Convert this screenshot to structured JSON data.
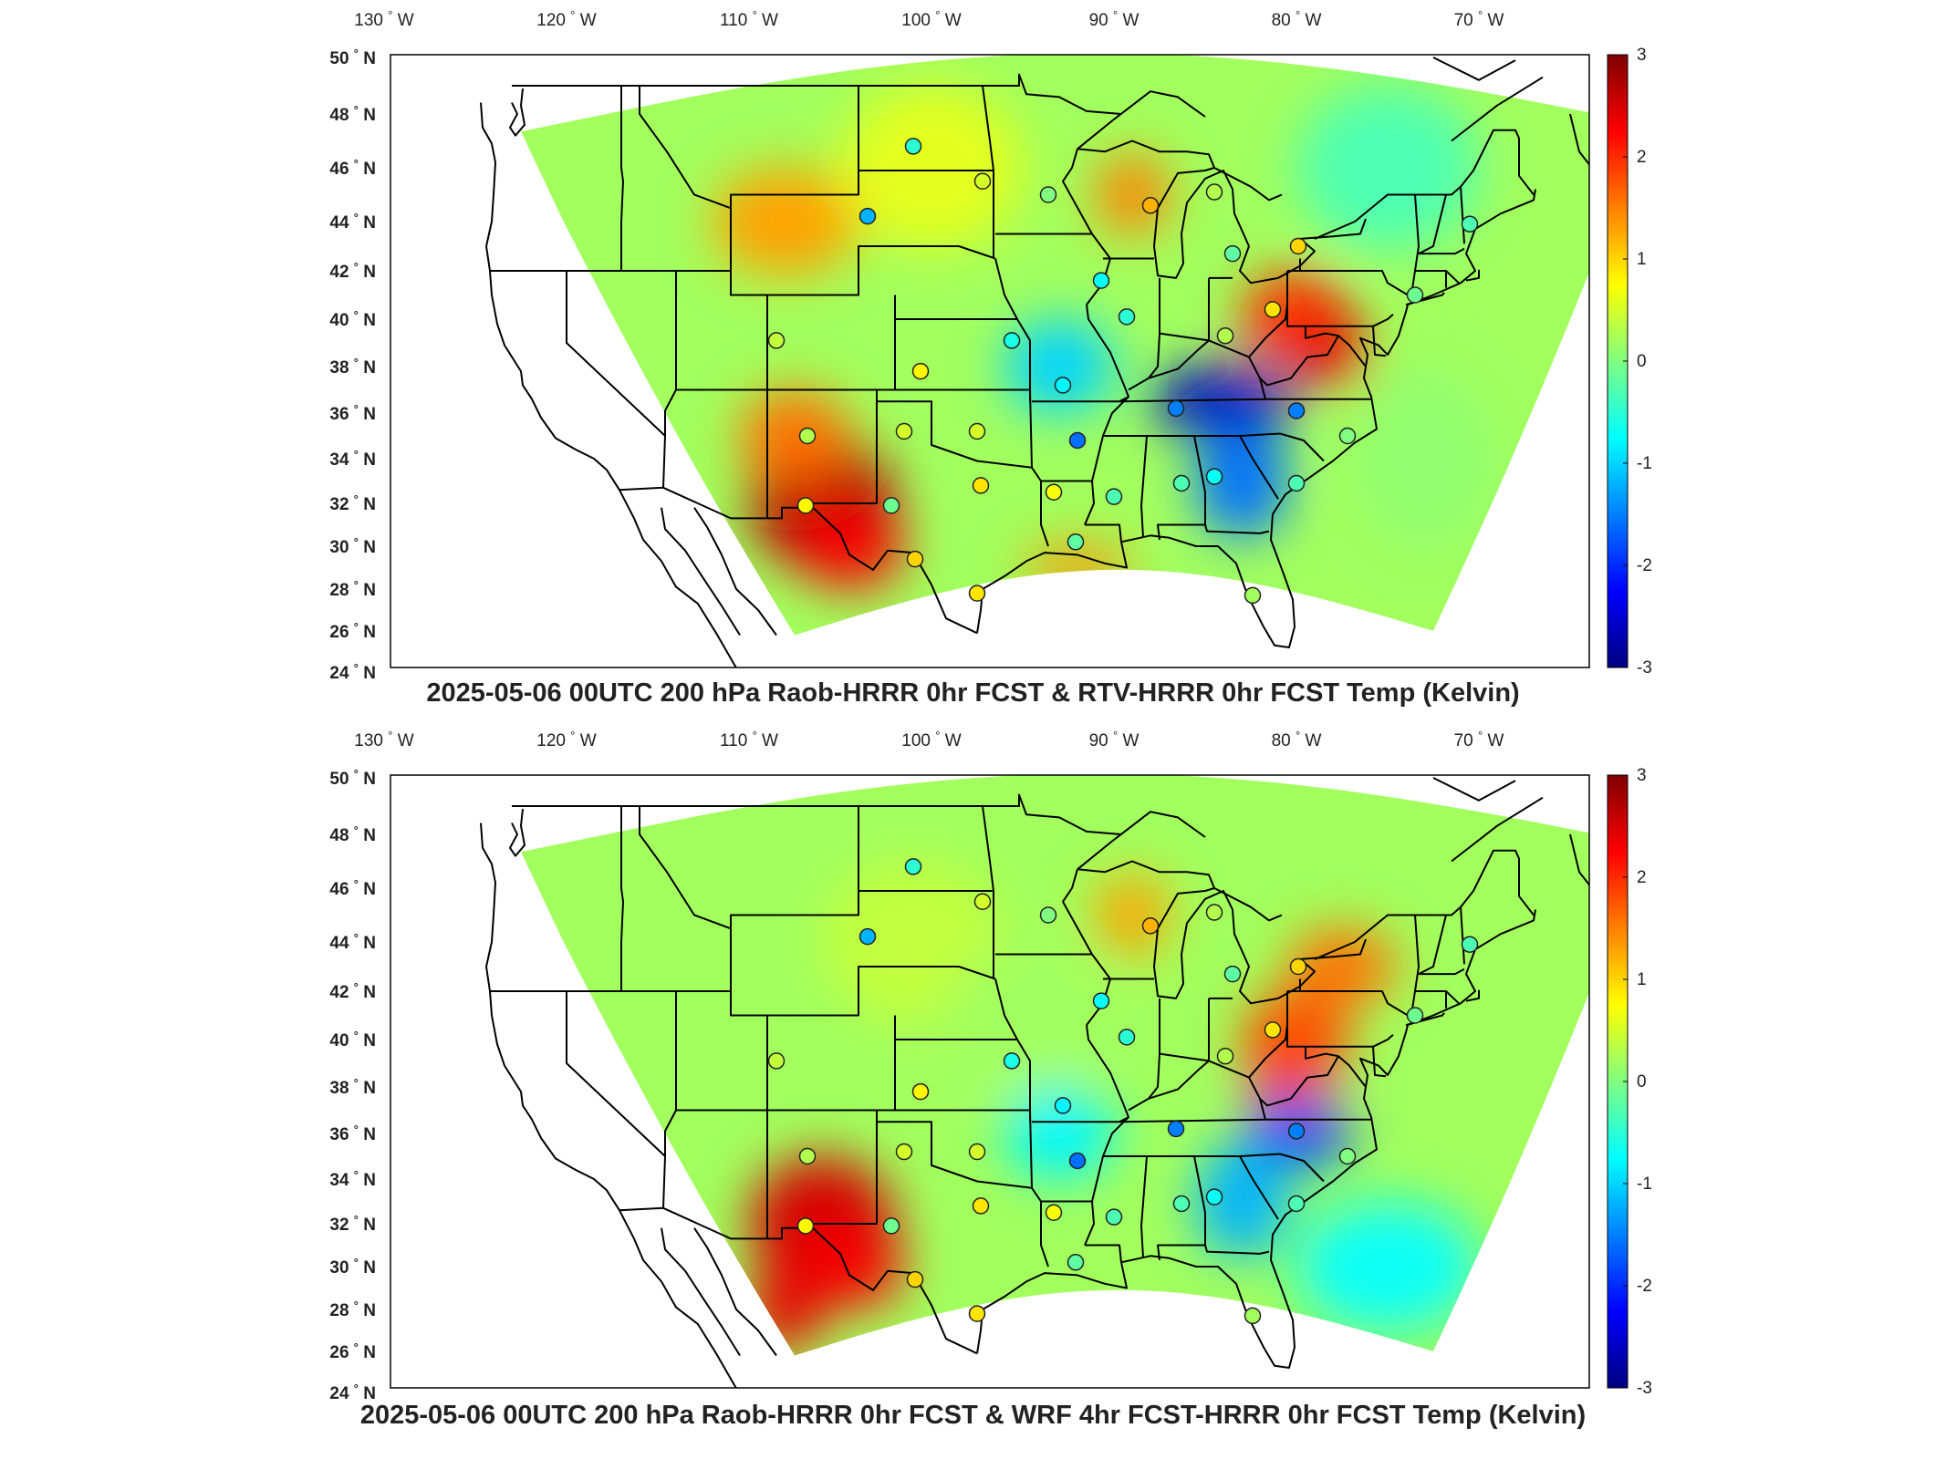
{
  "colors": {
    "colormap": "jet",
    "land_border": "#000000",
    "frame": "#000000",
    "station_edge": "#222222"
  },
  "panels": [
    {
      "id": "top",
      "title": "2025-05-06 00UTC 200 hPa Raob-HRRR 0hr FCST & RTV-HRRR 0hr FCST Temp (Kelvin)",
      "lon_ticks": [
        {
          "v": -130,
          "t": "130"
        },
        {
          "v": -120,
          "t": "120"
        },
        {
          "v": -110,
          "t": "110"
        },
        {
          "v": -100,
          "t": "100"
        },
        {
          "v": -90,
          "t": "90"
        },
        {
          "v": -80,
          "t": "80"
        },
        {
          "v": -70,
          "t": "70"
        }
      ],
      "lat_ticks": [
        {
          "v": 50,
          "t": "50"
        },
        {
          "v": 48,
          "t": "48"
        },
        {
          "v": 46,
          "t": "46"
        },
        {
          "v": 44,
          "t": "44"
        },
        {
          "v": 42,
          "t": "42"
        },
        {
          "v": 40,
          "t": "40"
        },
        {
          "v": 38,
          "t": "38"
        },
        {
          "v": 36,
          "t": "36"
        },
        {
          "v": 34,
          "t": "34"
        },
        {
          "v": 32,
          "t": "32"
        },
        {
          "v": 30,
          "t": "30"
        },
        {
          "v": 28,
          "t": "28"
        },
        {
          "v": 26,
          "t": "26"
        },
        {
          "v": 24,
          "t": "24"
        }
      ],
      "lon_suffix": "W",
      "lat_suffix": "N",
      "degree": "°",
      "colorbar": {
        "min": -3,
        "max": 3,
        "ticks": [
          "3",
          "2",
          "1",
          "0",
          "-1",
          "-2",
          "-3"
        ]
      },
      "field_anomalies": [
        {
          "lon": -106,
          "lat": 32,
          "value": 2.7,
          "rx": 4,
          "ry": 3
        },
        {
          "lon": -104.5,
          "lat": 30,
          "value": 2.3,
          "rx": 3,
          "ry": 2
        },
        {
          "lon": -107.5,
          "lat": 35,
          "value": 1.6,
          "rx": 3,
          "ry": 2
        },
        {
          "lon": -108,
          "lat": 44,
          "value": 1.3,
          "rx": 4,
          "ry": 2
        },
        {
          "lon": -89,
          "lat": 45,
          "value": 1.5,
          "rx": 2,
          "ry": 1.5
        },
        {
          "lon": -80,
          "lat": 40,
          "value": 2.0,
          "rx": 3,
          "ry": 2
        },
        {
          "lon": -78,
          "lat": 38.5,
          "value": 2.4,
          "rx": 2,
          "ry": 1.5
        },
        {
          "lon": -84,
          "lat": 36.5,
          "value": -2.6,
          "rx": 4,
          "ry": 1.5
        },
        {
          "lon": -83,
          "lat": 33,
          "value": -1.6,
          "rx": 2.5,
          "ry": 2.5
        },
        {
          "lon": -93,
          "lat": 38,
          "value": -1.0,
          "rx": 3,
          "ry": 2
        },
        {
          "lon": -92,
          "lat": 29,
          "value": 1.4,
          "rx": 3,
          "ry": 1
        },
        {
          "lon": -100,
          "lat": 46,
          "value": 0.6,
          "rx": 5,
          "ry": 3
        },
        {
          "lon": -75,
          "lat": 46,
          "value": -0.3,
          "rx": 5,
          "ry": 3
        },
        {
          "lon": -73,
          "lat": 34,
          "value": 0.1,
          "rx": 4,
          "ry": 4
        }
      ],
      "stations": [
        {
          "lon": -101.0,
          "lat": 46.8,
          "value": -0.5
        },
        {
          "lon": -97.2,
          "lat": 45.5,
          "value": 0.5
        },
        {
          "lon": -93.6,
          "lat": 45.0,
          "value": 0.0
        },
        {
          "lon": -103.5,
          "lat": 44.2,
          "value": -1.2
        },
        {
          "lon": -88.0,
          "lat": 44.6,
          "value": 1.2
        },
        {
          "lon": -84.5,
          "lat": 45.1,
          "value": 0.3
        },
        {
          "lon": -83.5,
          "lat": 42.7,
          "value": -0.2
        },
        {
          "lon": -79.9,
          "lat": 43.0,
          "value": 1.0
        },
        {
          "lon": -90.7,
          "lat": 41.6,
          "value": -0.7
        },
        {
          "lon": -89.3,
          "lat": 40.1,
          "value": -0.5
        },
        {
          "lon": -81.3,
          "lat": 40.4,
          "value": 0.9
        },
        {
          "lon": -83.9,
          "lat": 39.3,
          "value": 0.3
        },
        {
          "lon": -73.5,
          "lat": 41.0,
          "value": -0.1
        },
        {
          "lon": -70.5,
          "lat": 43.9,
          "value": -0.3
        },
        {
          "lon": -108.5,
          "lat": 39.1,
          "value": 0.4
        },
        {
          "lon": -95.6,
          "lat": 39.1,
          "value": -0.6
        },
        {
          "lon": -100.6,
          "lat": 37.8,
          "value": 0.8
        },
        {
          "lon": -92.8,
          "lat": 37.2,
          "value": -0.8
        },
        {
          "lon": -86.6,
          "lat": 36.2,
          "value": -1.5
        },
        {
          "lon": -80.0,
          "lat": 36.1,
          "value": -1.5
        },
        {
          "lon": -77.2,
          "lat": 35.0,
          "value": 0.0
        },
        {
          "lon": -106.8,
          "lat": 35.0,
          "value": 0.3
        },
        {
          "lon": -101.5,
          "lat": 35.2,
          "value": 0.5
        },
        {
          "lon": -97.5,
          "lat": 35.2,
          "value": 0.5
        },
        {
          "lon": -92.0,
          "lat": 34.8,
          "value": -1.6
        },
        {
          "lon": -97.3,
          "lat": 32.8,
          "value": 0.9
        },
        {
          "lon": -93.3,
          "lat": 32.5,
          "value": 0.7
        },
        {
          "lon": -90.0,
          "lat": 32.3,
          "value": -0.3
        },
        {
          "lon": -86.3,
          "lat": 32.9,
          "value": -0.3
        },
        {
          "lon": -84.5,
          "lat": 33.2,
          "value": -0.7
        },
        {
          "lon": -80.0,
          "lat": 32.9,
          "value": -0.3
        },
        {
          "lon": -106.9,
          "lat": 31.9,
          "value": 0.8
        },
        {
          "lon": -102.2,
          "lat": 31.9,
          "value": -0.1
        },
        {
          "lon": -100.9,
          "lat": 29.4,
          "value": 1.0
        },
        {
          "lon": -92.1,
          "lat": 30.2,
          "value": -0.2
        },
        {
          "lon": -97.5,
          "lat": 27.8,
          "value": 0.9
        },
        {
          "lon": -82.4,
          "lat": 27.7,
          "value": 0.2
        }
      ]
    },
    {
      "id": "bottom",
      "title": "2025-05-06 00UTC 200 hPa Raob-HRRR 0hr FCST & WRF 4hr FCST-HRRR 0hr FCST Temp (Kelvin)",
      "lon_ticks": [
        {
          "v": -130,
          "t": "130"
        },
        {
          "v": -120,
          "t": "120"
        },
        {
          "v": -110,
          "t": "110"
        },
        {
          "v": -100,
          "t": "100"
        },
        {
          "v": -90,
          "t": "90"
        },
        {
          "v": -80,
          "t": "80"
        },
        {
          "v": -70,
          "t": "70"
        }
      ],
      "lat_ticks": [
        {
          "v": 50,
          "t": "50"
        },
        {
          "v": 48,
          "t": "48"
        },
        {
          "v": 46,
          "t": "46"
        },
        {
          "v": 44,
          "t": "44"
        },
        {
          "v": 42,
          "t": "42"
        },
        {
          "v": 40,
          "t": "40"
        },
        {
          "v": 38,
          "t": "38"
        },
        {
          "v": 36,
          "t": "36"
        },
        {
          "v": 34,
          "t": "34"
        },
        {
          "v": 32,
          "t": "32"
        },
        {
          "v": 30,
          "t": "30"
        },
        {
          "v": 28,
          "t": "28"
        },
        {
          "v": 26,
          "t": "26"
        },
        {
          "v": 24,
          "t": "24"
        }
      ],
      "lon_suffix": "W",
      "lat_suffix": "N",
      "degree": "°",
      "colorbar": {
        "min": -3,
        "max": 3,
        "ticks": [
          "3",
          "2",
          "1",
          "0",
          "-1",
          "-2",
          "-3"
        ]
      },
      "field_anomalies": [
        {
          "lon": -106,
          "lat": 32,
          "value": 2.5,
          "rx": 4,
          "ry": 3
        },
        {
          "lon": -104.5,
          "lat": 30,
          "value": 2.3,
          "rx": 3,
          "ry": 2
        },
        {
          "lon": -108,
          "lat": 28,
          "value": 2.4,
          "rx": 2,
          "ry": 2
        },
        {
          "lon": -89,
          "lat": 45,
          "value": 1.3,
          "rx": 2,
          "ry": 1.5
        },
        {
          "lon": -80,
          "lat": 40,
          "value": 1.8,
          "rx": 3,
          "ry": 2
        },
        {
          "lon": -77.5,
          "lat": 43,
          "value": 1.6,
          "rx": 3,
          "ry": 1.5
        },
        {
          "lon": -80.5,
          "lat": 38.3,
          "value": 1.9,
          "rx": 2,
          "ry": 1.5
        },
        {
          "lon": -80,
          "lat": 36,
          "value": -1.8,
          "rx": 3,
          "ry": 1.5
        },
        {
          "lon": -83,
          "lat": 33,
          "value": -1.2,
          "rx": 2.5,
          "ry": 2.5
        },
        {
          "lon": -93,
          "lat": 36,
          "value": -0.8,
          "rx": 3,
          "ry": 2
        },
        {
          "lon": -75,
          "lat": 30,
          "value": -0.7,
          "rx": 5,
          "ry": 3
        },
        {
          "lon": -101,
          "lat": 44,
          "value": 0.4,
          "rx": 5,
          "ry": 3
        },
        {
          "lon": -95,
          "lat": 41,
          "value": 0.2,
          "rx": 4,
          "ry": 3
        }
      ],
      "stations": [
        {
          "lon": -101.0,
          "lat": 46.8,
          "value": -0.5
        },
        {
          "lon": -97.2,
          "lat": 45.5,
          "value": 0.5
        },
        {
          "lon": -93.6,
          "lat": 45.0,
          "value": 0.0
        },
        {
          "lon": -103.5,
          "lat": 44.2,
          "value": -1.2
        },
        {
          "lon": -88.0,
          "lat": 44.6,
          "value": 1.2
        },
        {
          "lon": -84.5,
          "lat": 45.1,
          "value": 0.3
        },
        {
          "lon": -83.5,
          "lat": 42.7,
          "value": -0.2
        },
        {
          "lon": -79.9,
          "lat": 43.0,
          "value": 1.0
        },
        {
          "lon": -90.7,
          "lat": 41.6,
          "value": -0.7
        },
        {
          "lon": -89.3,
          "lat": 40.1,
          "value": -0.5
        },
        {
          "lon": -81.3,
          "lat": 40.4,
          "value": 0.9
        },
        {
          "lon": -83.9,
          "lat": 39.3,
          "value": 0.3
        },
        {
          "lon": -73.5,
          "lat": 41.0,
          "value": -0.1
        },
        {
          "lon": -70.5,
          "lat": 43.9,
          "value": -0.3
        },
        {
          "lon": -108.5,
          "lat": 39.1,
          "value": 0.4
        },
        {
          "lon": -95.6,
          "lat": 39.1,
          "value": -0.6
        },
        {
          "lon": -100.6,
          "lat": 37.8,
          "value": 0.8
        },
        {
          "lon": -92.8,
          "lat": 37.2,
          "value": -0.8
        },
        {
          "lon": -86.6,
          "lat": 36.2,
          "value": -1.5
        },
        {
          "lon": -80.0,
          "lat": 36.1,
          "value": -1.5
        },
        {
          "lon": -77.2,
          "lat": 35.0,
          "value": 0.0
        },
        {
          "lon": -106.8,
          "lat": 35.0,
          "value": 0.3
        },
        {
          "lon": -101.5,
          "lat": 35.2,
          "value": 0.5
        },
        {
          "lon": -97.5,
          "lat": 35.2,
          "value": 0.5
        },
        {
          "lon": -92.0,
          "lat": 34.8,
          "value": -1.6
        },
        {
          "lon": -97.3,
          "lat": 32.8,
          "value": 0.9
        },
        {
          "lon": -93.3,
          "lat": 32.5,
          "value": 0.7
        },
        {
          "lon": -90.0,
          "lat": 32.3,
          "value": -0.3
        },
        {
          "lon": -86.3,
          "lat": 32.9,
          "value": -0.3
        },
        {
          "lon": -84.5,
          "lat": 33.2,
          "value": -0.7
        },
        {
          "lon": -80.0,
          "lat": 32.9,
          "value": -0.3
        },
        {
          "lon": -106.9,
          "lat": 31.9,
          "value": 0.8
        },
        {
          "lon": -102.2,
          "lat": 31.9,
          "value": -0.1
        },
        {
          "lon": -100.9,
          "lat": 29.4,
          "value": 1.0
        },
        {
          "lon": -92.1,
          "lat": 30.2,
          "value": -0.2
        },
        {
          "lon": -97.5,
          "lat": 27.8,
          "value": 0.9
        },
        {
          "lon": -82.4,
          "lat": 27.7,
          "value": 0.2
        }
      ]
    }
  ]
}
